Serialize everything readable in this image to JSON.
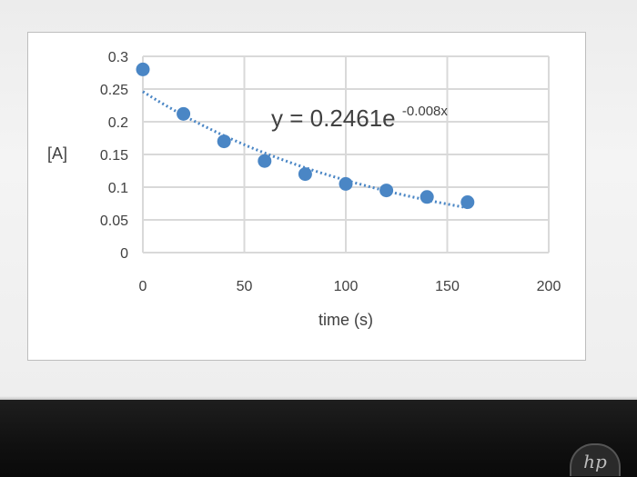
{
  "chart_data": {
    "type": "scatter",
    "title": "",
    "xlabel": "time (s)",
    "ylabel": "[A]",
    "xlim": [
      0,
      200
    ],
    "ylim": [
      0,
      0.3
    ],
    "x_ticks": [
      "0",
      "50",
      "100",
      "150",
      "200"
    ],
    "y_ticks": [
      "0",
      "0.05",
      "0.1",
      "0.15",
      "0.2",
      "0.25",
      "0.3"
    ],
    "grid": true,
    "legend": "none",
    "series": [
      {
        "x": [
          0,
          20,
          40,
          60,
          80,
          100,
          120,
          140,
          160
        ],
        "y": [
          0.28,
          0.212,
          0.17,
          0.14,
          0.12,
          0.105,
          0.095,
          0.085,
          0.077
        ]
      }
    ],
    "trendline": {
      "type": "exponential",
      "equation_text": "y = 0.2461e",
      "exponent_text": "-0.008x",
      "a": 0.2461,
      "b": -0.008
    },
    "colors": {
      "marker": "#4a86c5",
      "trendline": "#4a86c5",
      "grid": "#d9d9d9",
      "text": "#404040"
    }
  },
  "bezel": {
    "logo_text": "hp"
  }
}
